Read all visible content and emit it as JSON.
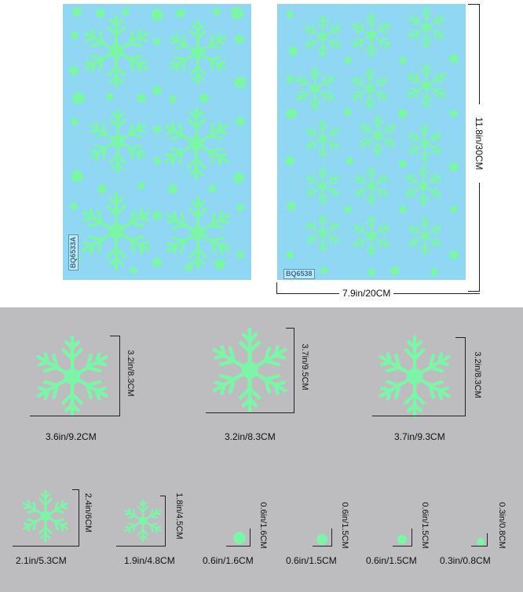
{
  "sheets": [
    {
      "code": "BQ6533A"
    },
    {
      "code": "BQ6538"
    }
  ],
  "sheet_dims": {
    "height": "11.8in/30CM",
    "width": "7.9in/20CM"
  },
  "pieces": [
    {
      "width": "3.6in/9.2CM",
      "height": "3.2in/8.3CM"
    },
    {
      "width": "3.2in/8.3CM",
      "height": "3.7in/9.5CM"
    },
    {
      "width": "3.7in/9.3CM",
      "height": "3.2in/8.3CM"
    },
    {
      "width": "2.1in/5.3CM",
      "height": "2.4in/6CM"
    },
    {
      "width": "1.9in/4.8CM",
      "height": "1.8in/4.5CM"
    },
    {
      "width": "0.6in/1.6CM",
      "height": "0.6in/1.6CM"
    },
    {
      "width": "0.6in/1.5CM",
      "height": "0.6in/1.5CM"
    },
    {
      "width": "0.6in/1.5CM",
      "height": "0.6in/1.5CM"
    },
    {
      "width": "0.3in/0.8CM",
      "height": "0.3in/0.8CM"
    }
  ],
  "colors": {
    "glow": "#7cf5a8",
    "sheet": "#8fd7f2",
    "panel": "#bdbdbf"
  }
}
